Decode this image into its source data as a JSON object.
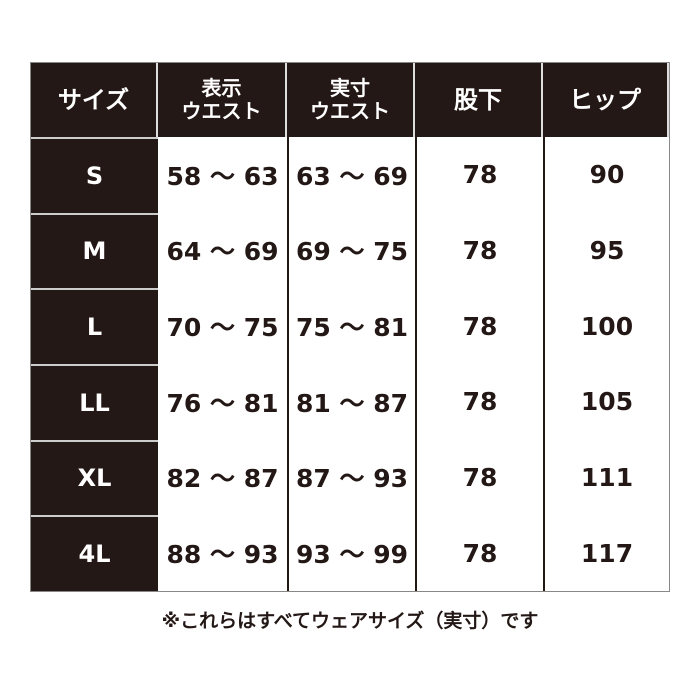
{
  "headers": [
    "サイズ",
    "表示\nウエスト",
    "実寸\nウエスト",
    "股下",
    "ヒップ"
  ],
  "rows": [
    {
      "size": "S",
      "display_waist": "58 ～ 63",
      "actual_waist": "63 ～ 69",
      "inseam": "78",
      "hip": "90"
    },
    {
      "size": "M",
      "display_waist": "64 ～ 69",
      "actual_waist": "69 ～ 75",
      "inseam": "78",
      "hip": "95"
    },
    {
      "size": "L",
      "display_waist": "70 ～ 75",
      "actual_waist": "75 ～ 81",
      "inseam": "78",
      "hip": "100"
    },
    {
      "size": "LL",
      "display_waist": "76 ～ 81",
      "actual_waist": "81 ～ 87",
      "inseam": "78",
      "hip": "105"
    },
    {
      "size": "XL",
      "display_waist": "82 ～ 87",
      "actual_waist": "87 ～ 93",
      "inseam": "78",
      "hip": "111"
    },
    {
      "size": "4L",
      "display_waist": "88 ～ 93",
      "actual_waist": "93 ～ 99",
      "inseam": "78",
      "hip": "117"
    }
  ],
  "note": "※これらはすべてウェアサイズ（実寸）です",
  "colors": {
    "header_bg": "#231815",
    "text": "#231815"
  }
}
